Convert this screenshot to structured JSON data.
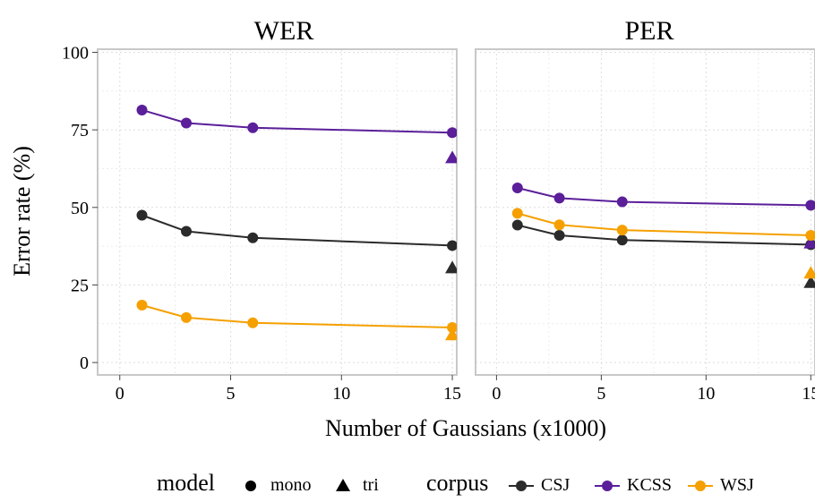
{
  "chart_data": {
    "type": "line",
    "xlabel": "Number of Gaussians (x1000)",
    "ylabel": "Error rate (%)",
    "xlim": [
      -1,
      15.2
    ],
    "ylim": [
      -4,
      101
    ],
    "x_ticks": [
      0,
      5,
      10,
      15
    ],
    "y_ticks": [
      0,
      25,
      50,
      75,
      100
    ],
    "grid": true,
    "legend": {
      "position": "bottom",
      "model_title": "model",
      "model_items": [
        {
          "label": "mono",
          "shape": "circle"
        },
        {
          "label": "tri",
          "shape": "triangle"
        }
      ],
      "corpus_title": "corpus",
      "corpus_items": [
        {
          "label": "CSJ",
          "color": "#2b2b2b"
        },
        {
          "label": "KCSS",
          "color": "#5b1f9a"
        },
        {
          "label": "WSJ",
          "color": "#f5a000"
        }
      ]
    },
    "panels": [
      {
        "title": "WER",
        "series": [
          {
            "name": "CSJ",
            "color": "#2b2b2b",
            "x": [
              1,
              3,
              6,
              15
            ],
            "y": [
              47.5,
              42.3,
              40.2,
              37.7
            ],
            "tri": 30.5
          },
          {
            "name": "KCSS",
            "color": "#5b1f9a",
            "x": [
              1,
              3,
              6,
              15
            ],
            "y": [
              81.4,
              77.2,
              75.7,
              74.1
            ],
            "tri": 66.0
          },
          {
            "name": "WSJ",
            "color": "#f5a000",
            "x": [
              1,
              3,
              6,
              15
            ],
            "y": [
              18.5,
              14.5,
              12.8,
              11.3
            ],
            "tri": 8.9
          }
        ]
      },
      {
        "title": "PER",
        "series": [
          {
            "name": "CSJ",
            "color": "#2b2b2b",
            "x": [
              1,
              3,
              6,
              15
            ],
            "y": [
              44.3,
              41.0,
              39.5,
              38.0
            ],
            "tri": 25.8
          },
          {
            "name": "KCSS",
            "color": "#5b1f9a",
            "x": [
              1,
              3,
              6,
              15
            ],
            "y": [
              56.3,
              53.0,
              51.8,
              50.7
            ],
            "tri": 38.5
          },
          {
            "name": "WSJ",
            "color": "#f5a000",
            "x": [
              1,
              3,
              6,
              15
            ],
            "y": [
              48.1,
              44.4,
              42.7,
              41.0
            ],
            "tri": 28.8
          }
        ]
      }
    ]
  }
}
